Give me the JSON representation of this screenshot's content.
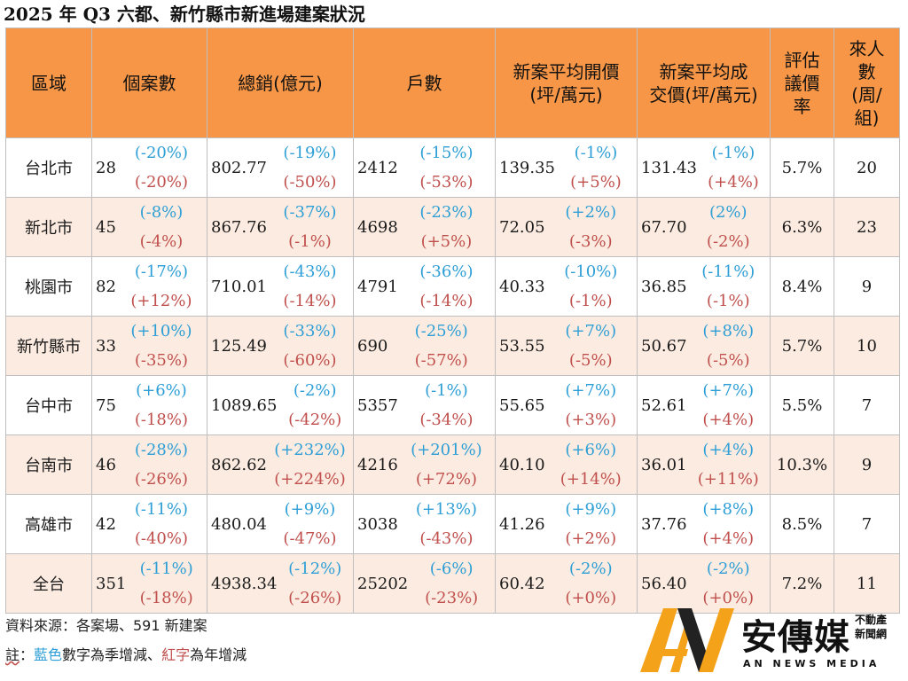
{
  "title": "2025 年 Q3 六都、新竹縣市新進場建案狀況",
  "headers": [
    "區域",
    "個案數",
    "總銷(億元)",
    "戶數",
    "新案平均開價\n(坪/萬元)",
    "新案平均成\n交價(坪/萬元)",
    "評估\n議價\n率",
    "來人\n數\n(周/\n組)"
  ],
  "rows": [
    {
      "region": "台北市",
      "cases": {
        "v": "28",
        "q": "(-20%)",
        "y": "(-20%)"
      },
      "sales": {
        "v": "802.77",
        "q": "(-19%)",
        "y": "(-50%)"
      },
      "units": {
        "v": "2412",
        "q": "(-15%)",
        "y": "(-53%)"
      },
      "ask": {
        "v": "139.35",
        "q": "(-1%)",
        "y": "(+5%)"
      },
      "deal": {
        "v": "131.43",
        "q": "(-1%)",
        "y": "(+4%)"
      },
      "bargain": "5.7%",
      "visitors": "20"
    },
    {
      "region": "新北市",
      "cases": {
        "v": "45",
        "q": "(-8%)",
        "y": "(-4%)"
      },
      "sales": {
        "v": "867.76",
        "q": "(-37%)",
        "y": "(-1%)"
      },
      "units": {
        "v": "4698",
        "q": "(-23%)",
        "y": "(+5%)"
      },
      "ask": {
        "v": "72.05",
        "q": "(+2%)",
        "y": "(-3%)"
      },
      "deal": {
        "v": "67.70",
        "q": "(2%)",
        "y": "(-2%)"
      },
      "bargain": "6.3%",
      "visitors": "23"
    },
    {
      "region": "桃園市",
      "cases": {
        "v": "82",
        "q": "(-17%)",
        "y": "(+12%)"
      },
      "sales": {
        "v": "710.01",
        "q": "(-43%)",
        "y": "(-14%)"
      },
      "units": {
        "v": "4791",
        "q": "(-36%)",
        "y": "(-14%)"
      },
      "ask": {
        "v": "40.33",
        "q": "(-10%)",
        "y": "(-1%)"
      },
      "deal": {
        "v": "36.85",
        "q": "(-11%)",
        "y": "(-1%)"
      },
      "bargain": "8.4%",
      "visitors": "9"
    },
    {
      "region": "新竹縣市",
      "cases": {
        "v": "33",
        "q": "(+10%)",
        "y": "(-35%)"
      },
      "sales": {
        "v": "125.49",
        "q": "(-33%)",
        "y": "(-60%)"
      },
      "units": {
        "v": "690",
        "q": "(-25%)",
        "y": "(-57%)"
      },
      "ask": {
        "v": "53.55",
        "q": "(+7%)",
        "y": "(-5%)"
      },
      "deal": {
        "v": "50.67",
        "q": "(+8%)",
        "y": "(-5%)"
      },
      "bargain": "5.7%",
      "visitors": "10"
    },
    {
      "region": "台中市",
      "cases": {
        "v": "75",
        "q": "(+6%)",
        "y": "(-18%)"
      },
      "sales": {
        "v": "1089.65",
        "q": "(-2%)",
        "y": "(-42%)"
      },
      "units": {
        "v": "5357",
        "q": "(-1%)",
        "y": "(-34%)"
      },
      "ask": {
        "v": "55.65",
        "q": "(+7%)",
        "y": "(+3%)"
      },
      "deal": {
        "v": "52.61",
        "q": "(+7%)",
        "y": "(+4%)"
      },
      "bargain": "5.5%",
      "visitors": "7"
    },
    {
      "region": "台南市",
      "cases": {
        "v": "46",
        "q": "(-28%)",
        "y": "(-26%)"
      },
      "sales": {
        "v": "862.62",
        "q": "(+232%)",
        "y": "(+224%)"
      },
      "units": {
        "v": "4216",
        "q": "(+201%)",
        "y": "(+72%)"
      },
      "ask": {
        "v": "40.10",
        "q": "(+6%)",
        "y": "(+14%)"
      },
      "deal": {
        "v": "36.01",
        "q": "(+4%)",
        "y": "(+11%)"
      },
      "bargain": "10.3%",
      "visitors": "9"
    },
    {
      "region": "高雄市",
      "cases": {
        "v": "42",
        "q": "(-11%)",
        "y": "(-40%)"
      },
      "sales": {
        "v": "480.04",
        "q": "(+9%)",
        "y": "(-47%)"
      },
      "units": {
        "v": "3038",
        "q": "(+13%)",
        "y": "(-43%)"
      },
      "ask": {
        "v": "41.26",
        "q": "(+9%)",
        "y": "(+2%)"
      },
      "deal": {
        "v": "37.76",
        "q": "(+8%)",
        "y": "(+4%)"
      },
      "bargain": "8.5%",
      "visitors": "7"
    },
    {
      "region": "全台",
      "cases": {
        "v": "351",
        "q": "(-11%)",
        "y": "(-18%)"
      },
      "sales": {
        "v": "4938.34",
        "q": "(-12%)",
        "y": "(-26%)"
      },
      "units": {
        "v": "25202",
        "q": "(-6%)",
        "y": "(-23%)"
      },
      "ask": {
        "v": "60.42",
        "q": "(-2%)",
        "y": "(+0%)"
      },
      "deal": {
        "v": "56.40",
        "q": "(-2%)",
        "y": "(+0%)"
      },
      "bargain": "7.2%",
      "visitors": "11"
    }
  ],
  "footer": {
    "source_label": "資料來源：各案場、591 新建案",
    "note_prefix": "註",
    "note_colon": "：",
    "note_blue": "藍色",
    "note_mid": "數字為季增減、",
    "note_red": "紅字",
    "note_end": "為年增減"
  },
  "logo": {
    "name": "安傳媒",
    "sub1": "不動產",
    "sub2": "新聞網",
    "en": "AN NEWS MEDIA"
  },
  "colors": {
    "header_bg": "#f79646",
    "stripe_bg": "#fcebe0",
    "quarter_change": "#2e9fd6",
    "year_change": "#c0504d",
    "logo_orange": "#f5a21b"
  }
}
